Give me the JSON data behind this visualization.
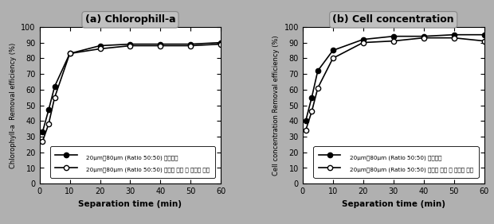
{
  "x": [
    1,
    3,
    5,
    10,
    20,
    30,
    40,
    50,
    60
  ],
  "chlorophyll_series1": [
    33,
    47,
    62,
    83,
    88,
    89,
    89,
    89,
    90
  ],
  "chlorophyll_series2": [
    27,
    38,
    55,
    83,
    86,
    88,
    88,
    88,
    89
  ],
  "cell_series1": [
    40,
    55,
    72,
    85,
    92,
    94,
    94,
    95,
    95
  ],
  "cell_series2": [
    34,
    46,
    61,
    80,
    90,
    91,
    93,
    93,
    91
  ],
  "title_a": "(a) Chlorophill-a",
  "title_b": "(b) Cell concentration",
  "xlabel": "Separation time (min)",
  "ylabel_a": "Chlorophyll-a  Removal efficiency (%)",
  "ylabel_b": "Cell concentration Removal efficiency (%)",
  "legend1": "20μm：80μm (Ratio 50:50) 동시주입",
  "legend2": "20μm：80μm (Ratio 50:50) 부착형 주입 후 부상형 주입",
  "xlim": [
    0,
    60
  ],
  "ylim": [
    0,
    100
  ],
  "xticks": [
    0,
    10,
    20,
    30,
    40,
    50,
    60
  ],
  "yticks": [
    0,
    10,
    20,
    30,
    40,
    50,
    60,
    70,
    80,
    90,
    100
  ],
  "color_solid": "#000000",
  "header_bg": "#c0c0c0",
  "outer_bg": "#b0b0b0",
  "panel_bg": "#ffffff"
}
